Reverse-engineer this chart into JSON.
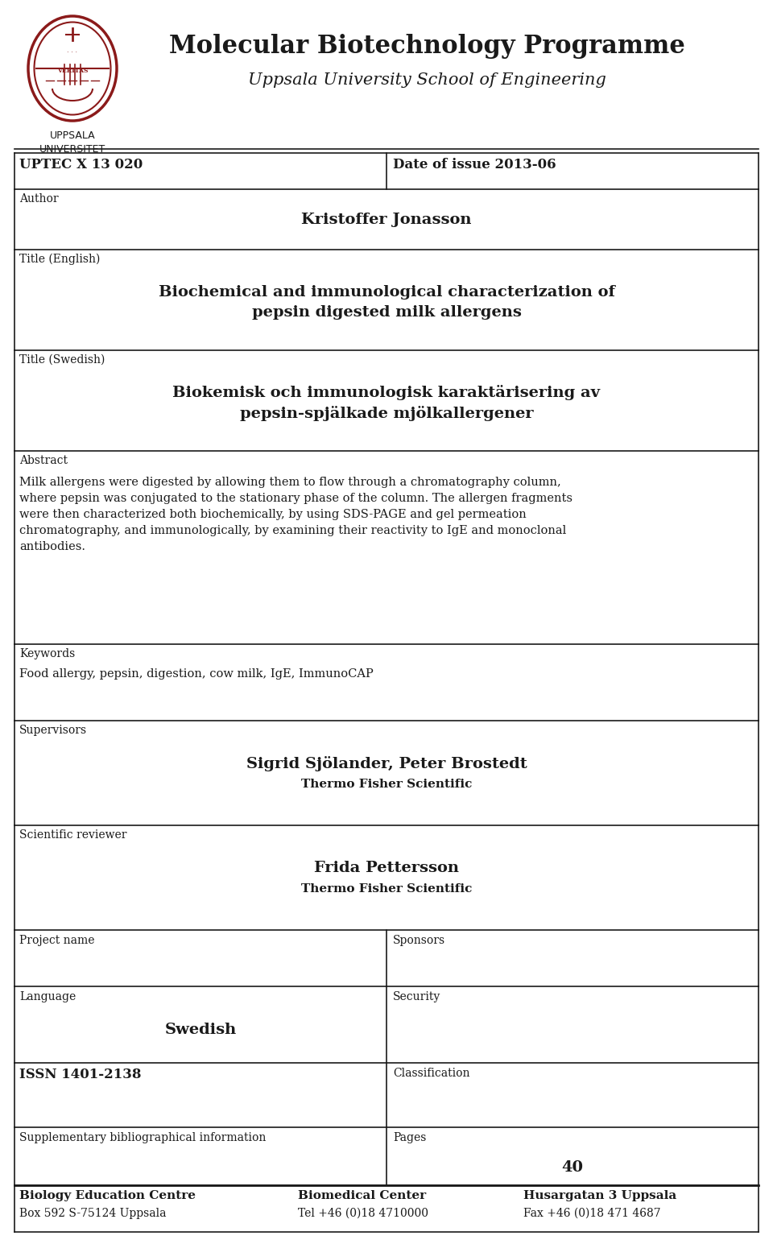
{
  "bg_color": "#ffffff",
  "text_color": "#1a1a1a",
  "header_title": "Molecular Biotechnology Programme",
  "header_subtitle": "Uppsala University School of Engineering",
  "univ_name": "UPPSALA\nUNIVERSITET",
  "uptec": "UPTEC X 13 020",
  "date_label": "Date of issue 2013-06",
  "author_label": "Author",
  "author_name": "Kristoffer Jonasson",
  "title_en_label": "Title (English)",
  "title_en": "Biochemical and immunological characterization of\npepsin digested milk allergens",
  "title_sw_label": "Title (Swedish)",
  "title_sw": "Biokemisk och immunologisk karaktärisering av\npepsin-spjälkade mjölkallergener",
  "abstract_label": "Abstract",
  "abstract_text": "Milk allergens were digested by allowing them to flow through a chromatography column,\nwhere pepsin was conjugated to the stationary phase of the column. The allergen fragments\nwere then characterized both biochemically, by using SDS-PAGE and gel permeation\nchromatography, and immunologically, by examining their reactivity to IgE and monoclonal\nantibodies.",
  "keywords_label": "Keywords",
  "keywords_text": "Food allergy, pepsin, digestion, cow milk, IgE, ImmunoCAP",
  "supervisors_label": "Supervisors",
  "supervisors_name": "Sigrid Sjölander, Peter Brostedt",
  "supervisors_org": "Thermo Fisher Scientific",
  "reviewer_label": "Scientific reviewer",
  "reviewer_name": "Frida Pettersson",
  "reviewer_org": "Thermo Fisher Scientific",
  "project_label": "Project name",
  "sponsors_label": "Sponsors",
  "language_label": "Language",
  "language_value": "Swedish",
  "security_label": "Security",
  "issn_label": "ISSN 1401-2138",
  "classification_label": "Classification",
  "supplementary_label": "Supplementary bibliographical information",
  "pages_label": "Pages",
  "pages_value": "40",
  "footer_col1_bold": "Biology Education Centre",
  "footer_col1_sub": "Box 592 S-75124 Uppsala",
  "footer_col2_bold": "Biomedical Center",
  "footer_col2_sub": "Tel +46 (0)18 4710000",
  "footer_col3_bold": "Husargatan 3 Uppsala",
  "footer_col3_sub": "Fax +46 (0)18 471 4687"
}
